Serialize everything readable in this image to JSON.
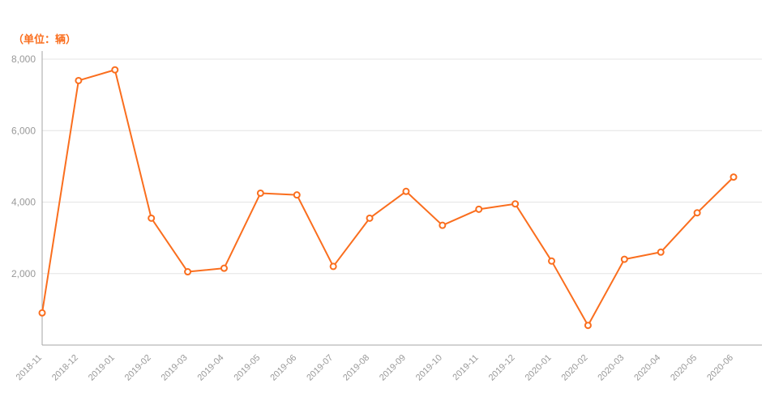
{
  "unit_label": "（单位：辆）",
  "colors": {
    "line": "#fa6e1e",
    "point_fill": "#ffffff",
    "unit_text": "#fa6e1e",
    "grid": "#e4e4e4",
    "axis": "#a6a6a6",
    "tick_text": "#999999"
  },
  "chart_data": {
    "type": "line",
    "title": "",
    "xlabel": "",
    "ylabel": "（单位：辆）",
    "categories": [
      "2018-11",
      "2018-12",
      "2019-01",
      "2019-02",
      "2019-03",
      "2019-04",
      "2019-05",
      "2019-06",
      "2019-07",
      "2019-08",
      "2019-09",
      "2019-10",
      "2019-11",
      "2019-12",
      "2020-01",
      "2020-02",
      "2020-03",
      "2020-04",
      "2020-05",
      "2020-06"
    ],
    "values": [
      900,
      7400,
      7700,
      3550,
      2050,
      2150,
      4250,
      4200,
      2200,
      3550,
      4300,
      3350,
      3800,
      3950,
      2350,
      550,
      2400,
      2600,
      3700,
      4700
    ],
    "ylim": [
      0,
      8000
    ],
    "yticks": [
      2000,
      4000,
      6000,
      8000
    ],
    "ytick_labels": [
      "2,000",
      "4,000",
      "6,000",
      "8,000"
    ],
    "grid": true,
    "legend_position": "none"
  }
}
